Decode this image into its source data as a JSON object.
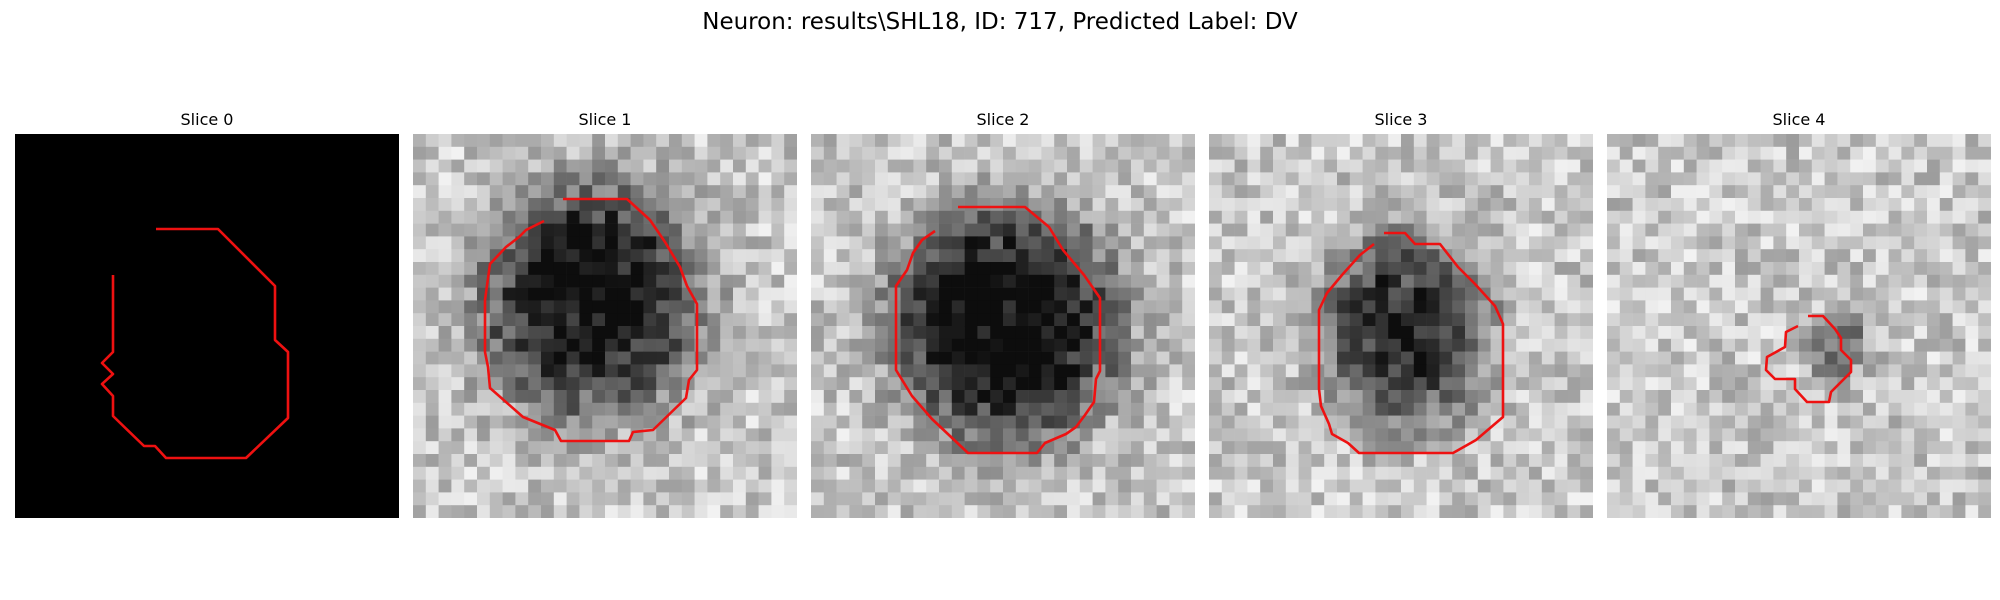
{
  "figure": {
    "title": "Neuron: results\\SHL18, ID: 717, Predicted Label: DV"
  },
  "panels": [
    {
      "title": "Slice 0",
      "image": "black mask image with red neuron contour",
      "seed": 11,
      "blob": {
        "cx": 15,
        "cy": 15,
        "rx": 0,
        "ry": 0,
        "depth": 0
      },
      "black": true
    },
    {
      "title": "Slice 1",
      "image": "grayscale microscopy patch with dark neuron body and red contour",
      "seed": 23,
      "blob": {
        "cx": 13.8,
        "cy": 13.0,
        "rx": 8.6,
        "ry": 9.0,
        "depth": 0.75
      },
      "black": false
    },
    {
      "title": "Slice 2",
      "image": "grayscale microscopy patch with dark neuron body and red contour",
      "seed": 47,
      "blob": {
        "cx": 15.2,
        "cy": 15.0,
        "rx": 8.8,
        "ry": 9.2,
        "depth": 0.82
      },
      "black": false
    },
    {
      "title": "Slice 3",
      "image": "grayscale microscopy patch with dark neuron body and red contour",
      "seed": 71,
      "blob": {
        "cx": 15.3,
        "cy": 15.2,
        "rx": 6.6,
        "ry": 7.6,
        "depth": 0.62
      },
      "black": false
    },
    {
      "title": "Slice 4",
      "image": "grayscale microscopy patch with small dark neuron and red contour",
      "seed": 97,
      "blob": {
        "cx": 18.0,
        "cy": 16.8,
        "rx": 2.6,
        "ry": 2.8,
        "depth": 0.35
      },
      "black": false
    }
  ],
  "colors": {
    "contour": "#ee1111",
    "background_black": "#000000"
  }
}
